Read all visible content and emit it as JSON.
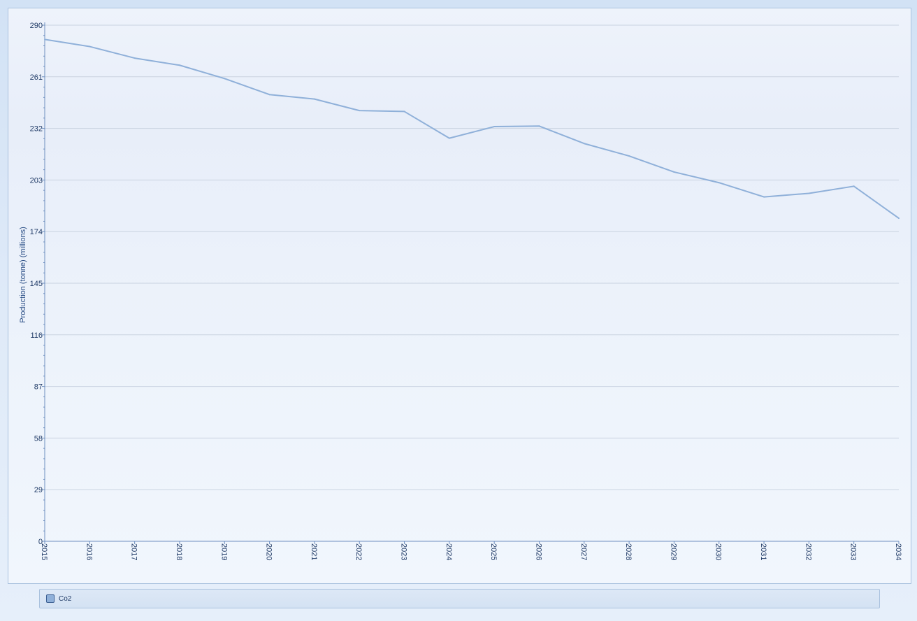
{
  "chart_data": {
    "type": "line",
    "title": "",
    "xlabel": "",
    "ylabel": "Production (tonne) (millions)",
    "x": [
      "2015",
      "2016",
      "2017",
      "2018",
      "2019",
      "2020",
      "2021",
      "2022",
      "2023",
      "2024",
      "2025",
      "2026",
      "2027",
      "2028",
      "2029",
      "2030",
      "2031",
      "2032",
      "2033",
      "2034"
    ],
    "series": [
      {
        "name": "Co2",
        "color": "#8fb0d9",
        "values": [
          282,
          278,
          271.5,
          267.5,
          260,
          251,
          248.5,
          242,
          241.5,
          226.5,
          233,
          233.3,
          223.5,
          216.5,
          207.5,
          201.5,
          193.5,
          195.5,
          199.5,
          181.5
        ]
      }
    ],
    "ylim": [
      0,
      290
    ],
    "yticks": [
      "0",
      "29",
      "58",
      "87",
      "116",
      "145",
      "174",
      "203",
      "232",
      "261",
      "290"
    ],
    "grid": true,
    "legend_position": "bottom"
  },
  "legend": {
    "items": [
      {
        "label": "Co2"
      }
    ]
  },
  "colors": {
    "line": "#8fb0d9",
    "grid": "#c9d3e0",
    "axis": "#6e8fbf",
    "text": "#1f3a66"
  }
}
